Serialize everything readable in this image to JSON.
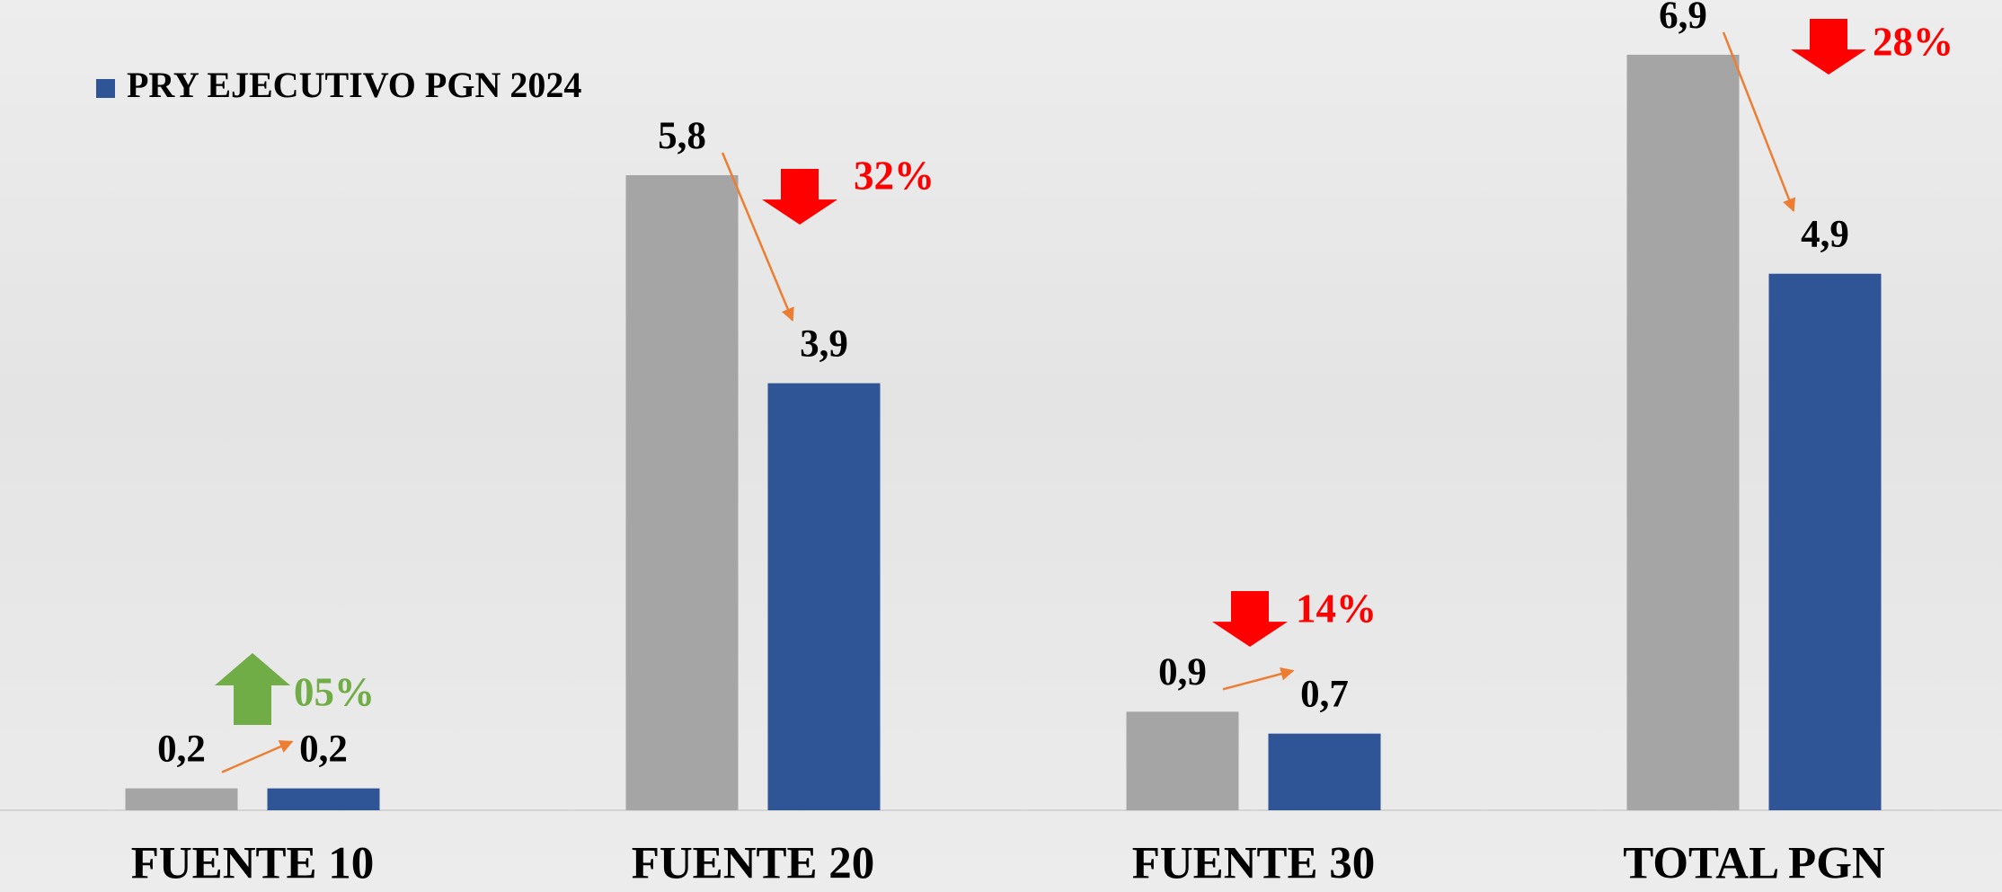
{
  "chart_data": {
    "type": "bar",
    "categories": [
      "FUENTE 10",
      "FUENTE 20",
      "FUENTE 30",
      "TOTAL PGN"
    ],
    "series": [
      {
        "color": "#a5a5a5",
        "values": [
          0.2,
          5.8,
          0.9,
          6.9
        ],
        "value_labels": [
          "0,2",
          "5,8",
          "0,9",
          "6,9"
        ]
      },
      {
        "name": "PRY EJECUTIVO PGN 2024",
        "color": "#2f5597",
        "values": [
          0.2,
          3.9,
          0.7,
          4.9
        ],
        "value_labels": [
          "0,2",
          "3,9",
          "0,7",
          "4,9"
        ]
      }
    ],
    "annotations": [
      {
        "text": "05%",
        "direction": "up",
        "color": "#70ad47"
      },
      {
        "text": "32%",
        "direction": "down",
        "color": "#ff0000"
      },
      {
        "text": "14%",
        "direction": "down",
        "color": "#ff0000"
      },
      {
        "text": "28%",
        "direction": "down",
        "color": "#ff0000"
      }
    ],
    "ylim": [
      0,
      7.4
    ],
    "legend": "top-left"
  }
}
